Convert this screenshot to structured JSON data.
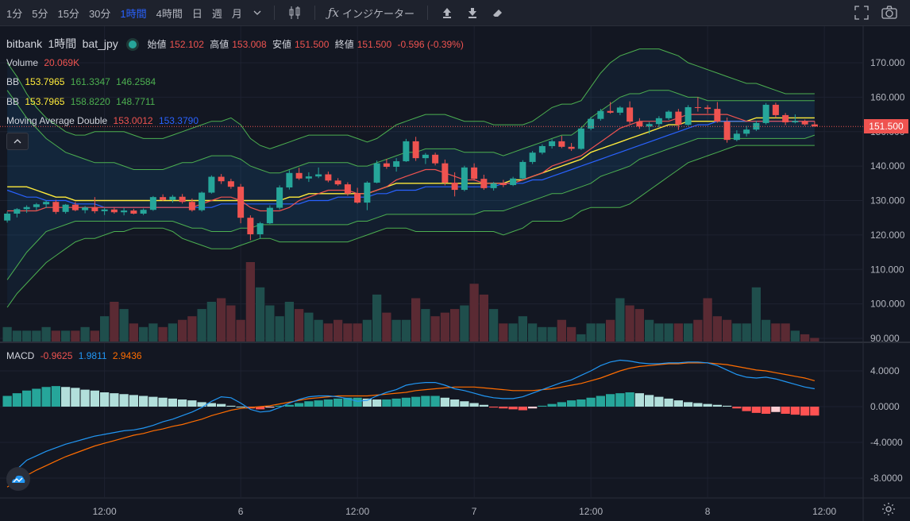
{
  "toolbar": {
    "timeframes": [
      "1分",
      "5分",
      "15分",
      "30分",
      "1時間",
      "4時間",
      "日",
      "週",
      "月"
    ],
    "active_timeframe_index": 4,
    "indicators_label": "インジケーター"
  },
  "legend": {
    "exchange": "bitbank",
    "interval": "1時間",
    "symbol": "bat_jpy",
    "open_label": "始値",
    "open": "152.102",
    "high_label": "高値",
    "high": "153.008",
    "low_label": "安値",
    "low": "151.500",
    "close_label": "終値",
    "close": "151.500",
    "change": "-0.596 (-0.39%)",
    "volume_label": "Volume",
    "volume": "20.069K",
    "bb1_label": "BB",
    "bb1_mid": "153.7965",
    "bb1_up": "161.3347",
    "bb1_low": "146.2584",
    "bb2_label": "BB",
    "bb2_mid": "153.7965",
    "bb2_up": "158.8220",
    "bb2_low": "148.7711",
    "ma_label": "Moving Average Double",
    "ma1": "153.0012",
    "ma2": "153.3790",
    "macd_label": "MACD",
    "macd_hist": "-0.9625",
    "macd": "1.9811",
    "macd_signal": "2.9436"
  },
  "price_axis": {
    "ticks": [
      "170.000",
      "160.000",
      "150.000",
      "140.000",
      "130.000",
      "120.000",
      "110.000",
      "100.000",
      "90.000"
    ],
    "tick_values": [
      170,
      160,
      150,
      140,
      130,
      120,
      110,
      100,
      90
    ],
    "last_price": "151.500",
    "last_value": 151.5
  },
  "macd_axis": {
    "ticks": [
      "4.0000",
      "0.0000",
      "-4.0000",
      "-8.0000"
    ],
    "tick_values": [
      4,
      0,
      -4,
      -8
    ]
  },
  "time_axis": {
    "labels": [
      "12:00",
      "6",
      "12:00",
      "7",
      "12:00",
      "8",
      "12:00"
    ],
    "bar_index": [
      10,
      24,
      36,
      48,
      60,
      72,
      84
    ]
  },
  "colors": {
    "up": "#26a69a",
    "down": "#ef5350",
    "bb_outer": "#4caf50",
    "bb_mid": "#ffeb3b",
    "ma_fast": "#ef5350",
    "ma_slow": "#2962ff",
    "macd_line": "#2196f3",
    "signal_line": "#ff6d00",
    "hist_up_strong": "#26a69a",
    "hist_up_weak": "#b2dfdb",
    "hist_down_strong": "#ff5252",
    "hist_down_weak": "#ffcdd2"
  },
  "chart_data": {
    "type": "candlestick",
    "symbol": "bat_jpy",
    "y_range": [
      89.5,
      178
    ],
    "candles": [
      [
        124.2,
        126.8,
        123.6,
        126.2
      ],
      [
        126.2,
        127.8,
        125.1,
        127.5
      ],
      [
        127.5,
        128.6,
        126.4,
        128.1
      ],
      [
        128.1,
        129.3,
        127.2,
        128.9
      ],
      [
        128.9,
        130.1,
        127.8,
        129.6
      ],
      [
        129.6,
        130.2,
        126.1,
        126.7
      ],
      [
        126.7,
        129.0,
        126.2,
        128.8
      ],
      [
        128.8,
        129.6,
        126.9,
        127.2
      ],
      [
        127.2,
        128.4,
        126.3,
        128.0
      ],
      [
        128.0,
        131.0,
        126.3,
        126.9
      ],
      [
        126.9,
        127.9,
        125.8,
        127.4
      ],
      [
        127.4,
        128.0,
        126.2,
        126.6
      ],
      [
        126.6,
        127.8,
        125.7,
        127.1
      ],
      [
        127.1,
        127.6,
        126.0,
        126.2
      ],
      [
        126.2,
        127.7,
        125.8,
        127.3
      ],
      [
        127.3,
        131.3,
        127.0,
        131.0
      ],
      [
        131.0,
        131.8,
        129.9,
        130.2
      ],
      [
        130.2,
        131.6,
        129.4,
        131.1
      ],
      [
        131.1,
        131.9,
        129.1,
        129.6
      ],
      [
        129.6,
        130.6,
        126.8,
        127.2
      ],
      [
        127.2,
        132.6,
        126.8,
        132.3
      ],
      [
        132.3,
        137.3,
        132.0,
        136.9
      ],
      [
        136.9,
        137.7,
        134.8,
        135.6
      ],
      [
        135.6,
        136.3,
        133.4,
        134.0
      ],
      [
        134.0,
        134.8,
        123.4,
        125.0
      ],
      [
        125.0,
        125.7,
        118.5,
        120.2
      ],
      [
        120.2,
        123.8,
        118.9,
        123.4
      ],
      [
        123.4,
        128.6,
        123.2,
        127.9
      ],
      [
        127.9,
        134.4,
        127.4,
        133.8
      ],
      [
        133.8,
        138.8,
        133.2,
        138.0
      ],
      [
        138.0,
        139.5,
        136.0,
        136.4
      ],
      [
        136.4,
        138.2,
        135.4,
        137.0
      ],
      [
        137.0,
        139.6,
        136.5,
        137.6
      ],
      [
        137.6,
        138.4,
        135.3,
        135.8
      ],
      [
        135.8,
        136.5,
        134.3,
        134.7
      ],
      [
        134.7,
        135.3,
        131.4,
        132.0
      ],
      [
        132.0,
        133.7,
        129.1,
        129.4
      ],
      [
        129.4,
        135.6,
        127.2,
        135.2
      ],
      [
        135.2,
        141.6,
        135.0,
        140.8
      ],
      [
        140.8,
        142.1,
        139.2,
        139.8
      ],
      [
        139.8,
        142.3,
        138.4,
        141.4
      ],
      [
        141.4,
        147.9,
        141.2,
        147.2
      ],
      [
        147.2,
        148.5,
        141.5,
        142.3
      ],
      [
        142.3,
        143.8,
        140.6,
        143.3
      ],
      [
        143.3,
        143.9,
        140.2,
        140.8
      ],
      [
        140.8,
        141.9,
        134.4,
        135.2
      ],
      [
        135.2,
        138.2,
        131.2,
        133.1
      ],
      [
        133.1,
        140.1,
        132.7,
        139.6
      ],
      [
        139.6,
        140.8,
        135.8,
        136.3
      ],
      [
        136.3,
        137.5,
        133.1,
        133.6
      ],
      [
        133.6,
        135.4,
        132.9,
        135.0
      ],
      [
        135.0,
        136.0,
        133.9,
        134.5
      ],
      [
        134.5,
        136.9,
        134.2,
        136.4
      ],
      [
        136.4,
        141.7,
        136.1,
        141.2
      ],
      [
        141.2,
        144.4,
        140.6,
        143.9
      ],
      [
        143.9,
        146.3,
        143.4,
        145.8
      ],
      [
        145.8,
        147.8,
        145.1,
        147.2
      ],
      [
        147.2,
        148.8,
        145.2,
        145.6
      ],
      [
        145.6,
        146.7,
        144.4,
        145.0
      ],
      [
        145.0,
        151.4,
        144.7,
        150.9
      ],
      [
        150.9,
        154.3,
        150.4,
        153.7
      ],
      [
        153.7,
        156.6,
        153.2,
        156.0
      ],
      [
        156.0,
        158.6,
        155.2,
        155.5
      ],
      [
        155.5,
        157.4,
        154.8,
        157.0
      ],
      [
        157.0,
        158.8,
        152.3,
        152.9
      ],
      [
        152.9,
        153.9,
        150.8,
        151.5
      ],
      [
        151.5,
        152.8,
        149.4,
        152.2
      ],
      [
        152.2,
        154.5,
        151.3,
        153.9
      ],
      [
        153.9,
        156.2,
        153.4,
        155.8
      ],
      [
        155.8,
        156.6,
        150.5,
        152.0
      ],
      [
        152.0,
        157.7,
        151.7,
        157.1
      ],
      [
        157.1,
        160.0,
        155.8,
        157.0
      ],
      [
        157.0,
        157.7,
        155.3,
        156.6
      ],
      [
        156.6,
        158.6,
        152.6,
        152.9
      ],
      [
        152.9,
        154.1,
        146.8,
        147.6
      ],
      [
        147.6,
        150.4,
        147.2,
        149.4
      ],
      [
        149.4,
        151.7,
        148.6,
        150.6
      ],
      [
        150.6,
        153.1,
        150.2,
        152.5
      ],
      [
        152.5,
        158.3,
        152.1,
        157.8
      ],
      [
        157.8,
        158.4,
        154.0,
        154.8
      ],
      [
        154.8,
        155.4,
        151.9,
        152.7
      ],
      [
        152.7,
        155.0,
        152.4,
        153.1
      ],
      [
        153.1,
        153.5,
        151.7,
        152.1
      ],
      [
        152.1,
        153.0,
        151.5,
        151.5
      ]
    ],
    "volume_max_height_note": "relative",
    "volumes": [
      4,
      3,
      3,
      3,
      4,
      3,
      3,
      3,
      4,
      3,
      7,
      11,
      9,
      5,
      4,
      5,
      4,
      5,
      6,
      7,
      9,
      11,
      12,
      10,
      6,
      22,
      15,
      10,
      7,
      11,
      9,
      8,
      6,
      5,
      6,
      5,
      5,
      6,
      13,
      8,
      6,
      6,
      12,
      9,
      7,
      8,
      9,
      10,
      16,
      13,
      9,
      5,
      5,
      7,
      5,
      4,
      4,
      6,
      4,
      2,
      5,
      5,
      6,
      12,
      10,
      9,
      6,
      5,
      5,
      5,
      5,
      6,
      12,
      7,
      6,
      5,
      5,
      15,
      6,
      5,
      5,
      3,
      2,
      1
    ],
    "bb1_upper": [
      170,
      166,
      161,
      157,
      154,
      152,
      150,
      149,
      149,
      150,
      150,
      150,
      150,
      149,
      148,
      148,
      148,
      149,
      150,
      151,
      152,
      153,
      153,
      154,
      152,
      148,
      146,
      145,
      146,
      147,
      148,
      149,
      149,
      149,
      149,
      149,
      148,
      147,
      148,
      150,
      152,
      153,
      154,
      155,
      155,
      155,
      154,
      153,
      153,
      153,
      152,
      152,
      152,
      152,
      153,
      155,
      157,
      158,
      158,
      159,
      163,
      167,
      170,
      172,
      173,
      174,
      174,
      174,
      173,
      172,
      170,
      169,
      168,
      167,
      166,
      165,
      164,
      164,
      163,
      162,
      161,
      161,
      161,
      161
    ],
    "bb1_lower": [
      99,
      103,
      106,
      109,
      112,
      114,
      116,
      118,
      119,
      119,
      120,
      121,
      121,
      122,
      122,
      122,
      122,
      121,
      119,
      118,
      117,
      116,
      116,
      116,
      117,
      118,
      119,
      119,
      118,
      118,
      118,
      118,
      118,
      118,
      118,
      118,
      119,
      120,
      121,
      122,
      122,
      122,
      121,
      121,
      121,
      121,
      121,
      121,
      121,
      121,
      121,
      120,
      121,
      122,
      124,
      124,
      124,
      124,
      125,
      127,
      128,
      128,
      128,
      128,
      129,
      131,
      133,
      135,
      137,
      139,
      141,
      142,
      143,
      144,
      145,
      146,
      146,
      146,
      146,
      146,
      146,
      146,
      146,
      146
    ],
    "bb2_upper": [
      162,
      158,
      154,
      151,
      148,
      146,
      144,
      143,
      142,
      141,
      141,
      141,
      140,
      139,
      139,
      139,
      139,
      140,
      141,
      141,
      142,
      143,
      143,
      143,
      142,
      140,
      139,
      138,
      138,
      139,
      140,
      141,
      141,
      141,
      141,
      141,
      140,
      140,
      141,
      142,
      143,
      144,
      144,
      145,
      145,
      145,
      145,
      144,
      144,
      144,
      144,
      143,
      144,
      145,
      146,
      147,
      148,
      149,
      149,
      151,
      154,
      156,
      158,
      160,
      161,
      161,
      162,
      162,
      162,
      161,
      160,
      160,
      159,
      159,
      159,
      159,
      159,
      159,
      159,
      159,
      159,
      159,
      159,
      159
    ],
    "bb2_lower": [
      107,
      111,
      115,
      118,
      121,
      122,
      123,
      124,
      124,
      124,
      124,
      124,
      124,
      124,
      124,
      124,
      124,
      124,
      123,
      122,
      122,
      121,
      121,
      121,
      122,
      122,
      123,
      123,
      123,
      123,
      123,
      123,
      123,
      123,
      123,
      123,
      124,
      124,
      125,
      126,
      126,
      126,
      126,
      126,
      126,
      126,
      126,
      126,
      126,
      127,
      127,
      127,
      128,
      129,
      130,
      131,
      132,
      132,
      133,
      134,
      135,
      137,
      138,
      139,
      140,
      142,
      143,
      144,
      145,
      146,
      147,
      148,
      148,
      148,
      148,
      148,
      148,
      148,
      148,
      148,
      148,
      148,
      148,
      149
    ],
    "bb_mid": [
      134,
      134,
      134,
      133,
      132,
      131,
      131,
      130,
      130,
      130,
      130,
      130,
      130,
      130,
      130,
      130,
      130,
      130,
      130,
      130,
      130,
      130,
      130,
      130,
      130,
      130,
      130,
      130,
      130,
      131,
      131,
      132,
      132,
      132,
      132,
      132,
      132,
      132,
      133,
      134,
      135,
      135,
      135,
      135,
      135,
      135,
      135,
      135,
      135,
      135,
      135,
      135,
      136,
      136,
      137,
      138,
      139,
      140,
      141,
      142,
      144,
      145,
      146,
      147,
      148,
      149,
      150,
      151,
      152,
      152,
      153,
      153,
      153,
      153,
      153,
      153,
      153,
      154,
      154,
      154,
      154,
      154,
      154,
      154
    ],
    "ma_fast": [
      127,
      127,
      127,
      127,
      128,
      128,
      128,
      128,
      128,
      128,
      128,
      128,
      128,
      128,
      128,
      128,
      128,
      128,
      128,
      128,
      129,
      130,
      131,
      131,
      130,
      128,
      127,
      127,
      127,
      128,
      130,
      131,
      132,
      133,
      133,
      133,
      132,
      132,
      133,
      134,
      136,
      137,
      138,
      139,
      139,
      138,
      137,
      136,
      136,
      135,
      135,
      135,
      135,
      136,
      137,
      138,
      140,
      141,
      142,
      143,
      145,
      147,
      149,
      151,
      152,
      153,
      153,
      153,
      153,
      154,
      155,
      155,
      155,
      155,
      155,
      154,
      153,
      153,
      153,
      153,
      153,
      153,
      153,
      153
    ],
    "ma_slow": [
      133,
      132,
      131,
      131,
      130,
      130,
      130,
      129,
      129,
      129,
      128,
      128,
      128,
      128,
      128,
      128,
      128,
      128,
      128,
      128,
      128,
      128,
      129,
      129,
      129,
      129,
      129,
      129,
      129,
      129,
      129,
      130,
      130,
      130,
      131,
      131,
      131,
      131,
      132,
      132,
      133,
      133,
      133,
      134,
      134,
      134,
      134,
      134,
      134,
      134,
      134,
      135,
      135,
      135,
      136,
      136,
      137,
      138,
      139,
      140,
      141,
      142,
      143,
      144,
      145,
      146,
      147,
      148,
      149,
      150,
      151,
      152,
      152,
      153,
      153,
      153,
      153,
      153,
      153,
      153,
      153,
      153,
      153,
      153
    ],
    "macd_line": [
      -8.5,
      -7.0,
      -6.0,
      -5.5,
      -5.0,
      -4.6,
      -4.2,
      -3.9,
      -3.6,
      -3.3,
      -3.1,
      -2.9,
      -2.7,
      -2.6,
      -2.4,
      -2.1,
      -1.7,
      -1.4,
      -1.0,
      -0.6,
      -0.1,
      0.6,
      1.1,
      1.0,
      0.4,
      -0.3,
      -0.6,
      -0.5,
      -0.1,
      0.4,
      0.8,
      1.1,
      1.2,
      1.2,
      1.1,
      0.9,
      0.6,
      0.7,
      1.2,
      1.6,
      1.9,
      2.4,
      2.6,
      2.7,
      2.7,
      2.4,
      2.0,
      1.8,
      1.5,
      1.2,
      1.0,
      0.9,
      0.9,
      1.1,
      1.5,
      1.9,
      2.3,
      2.7,
      3.0,
      3.5,
      4.0,
      4.6,
      5.0,
      5.2,
      5.1,
      4.9,
      4.8,
      4.8,
      4.9,
      4.9,
      5.0,
      5.0,
      4.9,
      4.6,
      4.1,
      3.6,
      3.3,
      3.2,
      3.3,
      3.1,
      2.8,
      2.5,
      2.2,
      2.0
    ],
    "signal_line": [
      -9.0,
      -8.3,
      -7.7,
      -7.1,
      -6.6,
      -6.1,
      -5.6,
      -5.2,
      -4.8,
      -4.4,
      -4.1,
      -3.8,
      -3.5,
      -3.2,
      -3.0,
      -2.7,
      -2.5,
      -2.2,
      -2.0,
      -1.7,
      -1.4,
      -1.0,
      -0.7,
      -0.4,
      -0.2,
      -0.1,
      0.0,
      0.1,
      0.3,
      0.5,
      0.7,
      0.9,
      1.0,
      1.1,
      1.2,
      1.2,
      1.2,
      1.2,
      1.3,
      1.4,
      1.5,
      1.6,
      1.8,
      1.9,
      2.0,
      2.1,
      2.2,
      2.2,
      2.2,
      2.1,
      2.0,
      1.9,
      1.8,
      1.8,
      1.8,
      1.9,
      2.0,
      2.2,
      2.4,
      2.6,
      2.9,
      3.2,
      3.6,
      4.0,
      4.3,
      4.5,
      4.6,
      4.7,
      4.8,
      4.8,
      4.9,
      4.9,
      4.9,
      4.8,
      4.7,
      4.5,
      4.3,
      4.1,
      4.0,
      3.8,
      3.6,
      3.4,
      3.2,
      2.9
    ],
    "macd_hist": [
      1.2,
      1.5,
      1.8,
      2.0,
      2.2,
      2.3,
      2.2,
      2.1,
      1.9,
      1.8,
      1.6,
      1.5,
      1.4,
      1.3,
      1.2,
      1.1,
      1.0,
      0.9,
      0.8,
      0.7,
      0.5,
      0.4,
      0.3,
      0.1,
      0.0,
      -0.2,
      -0.3,
      -0.1,
      0.1,
      0.2,
      0.4,
      0.6,
      0.7,
      0.8,
      0.9,
      1.0,
      1.0,
      0.9,
      0.8,
      0.8,
      0.9,
      1.0,
      1.1,
      1.2,
      1.2,
      1.0,
      0.8,
      0.6,
      0.4,
      0.2,
      -0.1,
      -0.2,
      -0.3,
      -0.4,
      -0.2,
      0.1,
      0.3,
      0.5,
      0.7,
      0.8,
      1.0,
      1.2,
      1.4,
      1.5,
      1.6,
      1.5,
      1.3,
      1.1,
      0.9,
      0.7,
      0.5,
      0.4,
      0.3,
      0.2,
      0.1,
      -0.2,
      -0.5,
      -0.7,
      -0.8,
      -0.6,
      -0.8,
      -0.9,
      -1.0,
      -1.0
    ]
  }
}
